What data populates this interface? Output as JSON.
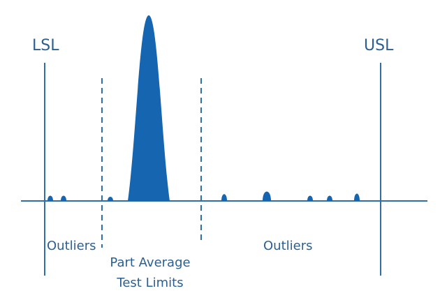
{
  "labels": {
    "lsl": "LSL",
    "usl": "USL",
    "outliers_left": "Outliers",
    "outliers_right": "Outliers",
    "pat_line1": "Part Average",
    "pat_line2": "Test Limits"
  },
  "colors": {
    "fill": "#1565b0",
    "line": "#2f6ea6",
    "text": "#2b5f92"
  }
}
